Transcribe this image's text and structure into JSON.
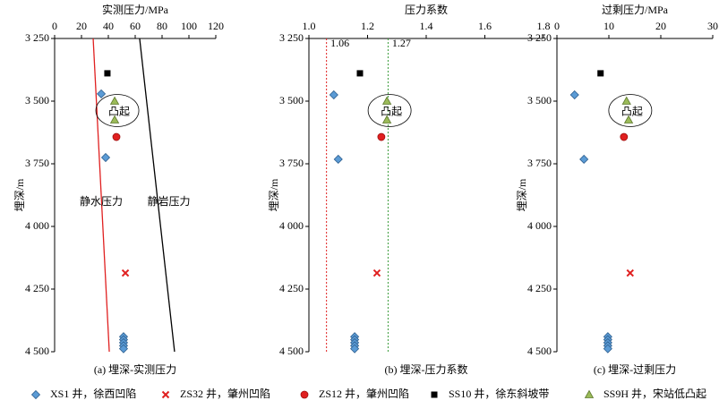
{
  "chart_data": [
    {
      "type": "scatter",
      "xlabel": "实测压力/MPa",
      "ylabel": "埋深/m",
      "caption": "(a) 埋深-实测压力",
      "annotation": "凸起",
      "xlim": [
        0,
        120
      ],
      "xticks": [
        0,
        20,
        40,
        60,
        80,
        100,
        120
      ],
      "ylim": [
        3250,
        4500
      ],
      "yticks": [
        {
          "value": 3250,
          "label": "3 250"
        },
        {
          "value": 3500,
          "label": "3 500"
        },
        {
          "value": 3750,
          "label": "3 750"
        },
        {
          "value": 4000,
          "label": "4 000"
        },
        {
          "value": 4250,
          "label": "4 250"
        },
        {
          "value": 4500,
          "label": "4 500"
        }
      ],
      "series": [
        {
          "x": [
            34.7,
            38,
            51.3,
            51.3,
            51.3,
            51.3,
            51.3
          ],
          "values": [
            3471,
            3725,
            4440,
            4452,
            4464,
            4476,
            4488
          ]
        },
        {
          "x": [
            52.7
          ],
          "values": [
            4186
          ]
        },
        {
          "x": [
            46
          ],
          "values": [
            3643
          ]
        },
        {
          "x": [
            39.3
          ],
          "values": [
            3389
          ]
        },
        {
          "x": [
            44.7,
            44.7
          ],
          "values": [
            3500,
            3575
          ]
        }
      ],
      "lines": [
        {
          "name": "静水压力",
          "color": "#e02020",
          "x": [
            28.7,
            40.7
          ],
          "values": [
            3250,
            4500
          ]
        },
        {
          "name": "静岩压力",
          "color": "#000000",
          "x": [
            63.3,
            89.3
          ],
          "values": [
            3250,
            4500
          ]
        }
      ]
    },
    {
      "type": "scatter",
      "xlabel": "压力系数",
      "ylabel": "埋深/m",
      "caption": "(b) 埋深-压力系数",
      "annotation": "凸起",
      "xlim": [
        1.0,
        1.8
      ],
      "xticks": [
        {
          "value": 1.0,
          "label": "1.0"
        },
        1.2,
        1.4,
        1.6,
        1.8
      ],
      "ylim": [
        3250,
        4500
      ],
      "yticks": [
        {
          "value": 3250,
          "label": "3 250"
        },
        {
          "value": 3500,
          "label": "3 500"
        },
        {
          "value": 3750,
          "label": "3 750"
        },
        {
          "value": 4000,
          "label": "4 000"
        },
        {
          "value": 4250,
          "label": "4 250"
        },
        {
          "value": 4500,
          "label": "4 500"
        }
      ],
      "series": [
        {
          "x": [
            1.085,
            1.1,
            1.156,
            1.156,
            1.156,
            1.156,
            1.156
          ],
          "values": [
            3475,
            3732,
            4440,
            4452,
            4464,
            4476,
            4488
          ]
        },
        {
          "x": [
            1.232
          ],
          "values": [
            4186
          ]
        },
        {
          "x": [
            1.247
          ],
          "values": [
            3643
          ]
        },
        {
          "x": [
            1.174
          ],
          "values": [
            3389
          ]
        },
        {
          "x": [
            1.266,
            1.266
          ],
          "values": [
            3500,
            3575
          ]
        }
      ],
      "ref_lines": [
        {
          "value": 1.06,
          "color": "#e02020"
        },
        {
          "value": 1.27,
          "color": "#3a9a3a"
        }
      ]
    },
    {
      "type": "scatter",
      "xlabel": "过剩压力/MPa",
      "ylabel": "埋深/m",
      "caption": "(c) 埋深-过剩压力",
      "annotation": "凸起",
      "xlim": [
        0,
        30
      ],
      "xticks": [
        0,
        10,
        20,
        30
      ],
      "ylim": [
        3250,
        4500
      ],
      "yticks": [
        {
          "value": 3250,
          "label": "3 250"
        },
        {
          "value": 3500,
          "label": "3 500"
        },
        {
          "value": 3750,
          "label": "3 750"
        },
        {
          "value": 4000,
          "label": "4 000"
        },
        {
          "value": 4250,
          "label": "4 250"
        },
        {
          "value": 4500,
          "label": "4 500"
        }
      ],
      "series": [
        {
          "x": [
            3.4,
            5.2,
            9.8,
            9.8,
            9.8,
            9.8,
            9.8
          ],
          "values": [
            3475,
            3732,
            4440,
            4452,
            4464,
            4476,
            4488
          ]
        },
        {
          "x": [
            14.1
          ],
          "values": [
            4186
          ]
        },
        {
          "x": [
            12.9
          ],
          "values": [
            3643
          ]
        },
        {
          "x": [
            8.4
          ],
          "values": [
            3389
          ]
        },
        {
          "x": [
            13.4,
            13.8
          ],
          "values": [
            3500,
            3575
          ]
        }
      ]
    }
  ],
  "legend": [
    {
      "name": "XS1 井，徐西凹陷",
      "color": "#5b9bd5",
      "marker": "diamond"
    },
    {
      "name": "ZS32 井，肇州凹陷",
      "color": "#e02020",
      "marker": "x"
    },
    {
      "name": "ZS12 井，肇州凹陷",
      "color": "#e02020",
      "marker": "circle"
    },
    {
      "name": "SS10 井，徐东斜坡带",
      "color": "#000000",
      "marker": "square"
    },
    {
      "name": "SS9H 井，宋站低凸起",
      "color": "#9bbb59",
      "marker": "triangle"
    }
  ]
}
